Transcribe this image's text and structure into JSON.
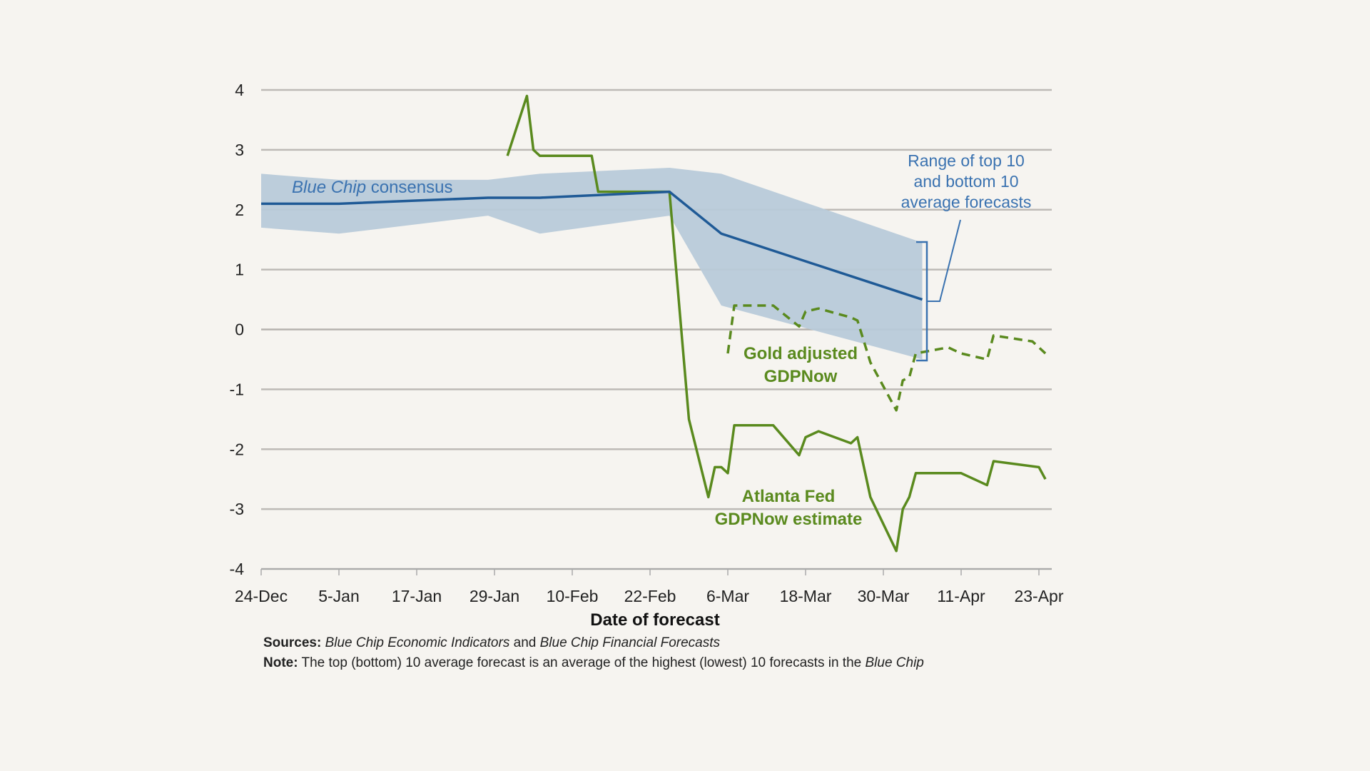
{
  "chart_data": {
    "type": "line",
    "title": "",
    "xlabel": "Date of forecast",
    "ylabel": "",
    "ylim": [
      -4,
      4
    ],
    "yticks": [
      "4",
      "3",
      "2",
      "1",
      "0",
      "-1",
      "-2",
      "-3",
      "-4"
    ],
    "xticks": [
      "24-Dec",
      "5-Jan",
      "17-Jan",
      "29-Jan",
      "10-Feb",
      "22-Feb",
      "6-Mar",
      "18-Mar",
      "30-Mar",
      "11-Apr",
      "23-Apr"
    ],
    "grid": true,
    "colors": {
      "band": "#b8cad9",
      "consensus": "#1f5a96",
      "gdpnow": "#5a8a1e",
      "annotation_blue": "#3a72b0"
    },
    "band": {
      "name": "Range of top 10 and bottom 10 average forecasts",
      "x": [
        "24-Dec",
        "5-Jan",
        "28-Jan",
        "5-Feb",
        "25-Feb",
        "5-Mar",
        "5-Apr"
      ],
      "upper": [
        2.6,
        2.5,
        2.5,
        2.6,
        2.7,
        2.6,
        1.45
      ],
      "lower": [
        1.7,
        1.6,
        1.9,
        1.6,
        1.9,
        0.4,
        -0.5
      ]
    },
    "series": [
      {
        "name": "Blue Chip consensus",
        "style": "solid",
        "x": [
          "24-Dec",
          "5-Jan",
          "28-Jan",
          "5-Feb",
          "25-Feb",
          "5-Mar",
          "5-Apr"
        ],
        "y": [
          2.1,
          2.1,
          2.2,
          2.2,
          2.3,
          1.6,
          0.5
        ]
      },
      {
        "name": "Atlanta Fed GDPNow estimate",
        "style": "solid",
        "x": [
          "31-Jan",
          "3-Feb",
          "4-Feb",
          "5-Feb",
          "13-Feb",
          "14-Feb",
          "25-Feb",
          "28-Feb",
          "3-Mar",
          "4-Mar",
          "5-Mar",
          "6-Mar",
          "7-Mar",
          "13-Mar",
          "17-Mar",
          "18-Mar",
          "20-Mar",
          "25-Mar",
          "26-Mar",
          "28-Mar",
          "1-Apr",
          "2-Apr",
          "3-Apr",
          "4-Apr",
          "11-Apr",
          "15-Apr",
          "16-Apr",
          "23-Apr",
          "24-Apr"
        ],
        "y": [
          2.9,
          3.9,
          3.0,
          2.9,
          2.9,
          2.3,
          2.3,
          -1.5,
          -2.8,
          -2.3,
          -2.3,
          -2.4,
          -1.6,
          -1.6,
          -2.1,
          -1.8,
          -1.7,
          -1.9,
          -1.8,
          -2.8,
          -3.7,
          -3.0,
          -2.8,
          -2.4,
          -2.4,
          -2.6,
          -2.2,
          -2.3,
          -2.5
        ]
      },
      {
        "name": "Gold adjusted GDPNow",
        "style": "dashed",
        "x": [
          "6-Mar",
          "7-Mar",
          "13-Mar",
          "17-Mar",
          "18-Mar",
          "20-Mar",
          "25-Mar",
          "26-Mar",
          "28-Mar",
          "1-Apr",
          "2-Apr",
          "3-Apr",
          "4-Apr",
          "9-Apr",
          "11-Apr",
          "15-Apr",
          "16-Apr",
          "22-Apr",
          "24-Apr"
        ],
        "y": [
          -0.4,
          0.4,
          0.4,
          0.05,
          0.3,
          0.35,
          0.2,
          0.15,
          -0.55,
          -1.35,
          -0.85,
          -0.8,
          -0.4,
          -0.3,
          -0.4,
          -0.5,
          -0.1,
          -0.2,
          -0.4
        ]
      }
    ],
    "annotations": {
      "consensus_italic": "Blue Chip",
      "consensus_rest": " consensus",
      "range_lines": [
        "Range of top 10",
        "and bottom 10",
        "average forecasts"
      ],
      "gold_lines": [
        "Gold adjusted",
        "GDPNow"
      ],
      "atlanta_lines": [
        "Atlanta Fed",
        "GDPNow estimate"
      ]
    }
  },
  "footer": {
    "sources_label": "Sources:",
    "sources_a": "Blue Chip Economic Indicators",
    "sources_and": " and ",
    "sources_b": "Blue Chip Financial Forecasts",
    "note_label": "Note:",
    "note_text": " The top (bottom) 10 average forecast is an average of the highest (lowest) 10 forecasts in the ",
    "note_italic": "Blue Chip"
  }
}
